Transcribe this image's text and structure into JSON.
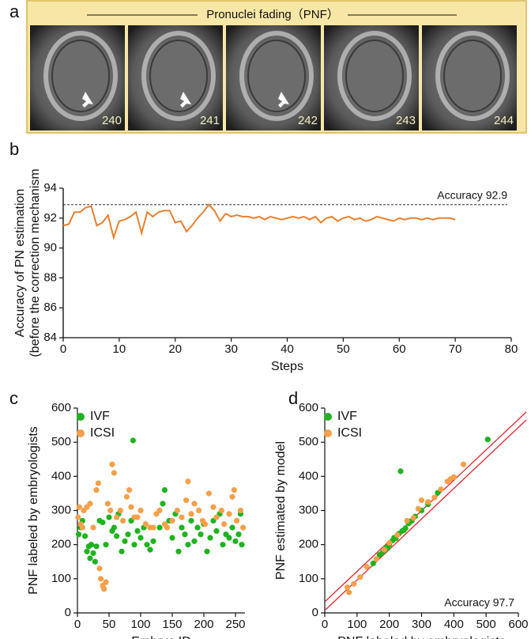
{
  "panel_labels": [
    "a",
    "b",
    "c",
    "d"
  ],
  "panel_a": {
    "title": "Pronuclei fading（PNF）",
    "frames": [
      "240",
      "241",
      "242",
      "243",
      "244"
    ]
  },
  "chart_data": [
    {
      "type": "line",
      "ylabel": [
        "Accuracy of PN estimation",
        "(before the correction mechanism"
      ],
      "xlabel": "Steps",
      "color": "#e8802f",
      "x": [
        0,
        1,
        2,
        3,
        4,
        5,
        6,
        7,
        8,
        9,
        10,
        11,
        12,
        13,
        14,
        15,
        16,
        17,
        18,
        19,
        20,
        21,
        22,
        23,
        24,
        25,
        26,
        27,
        28,
        29,
        30,
        31,
        32,
        33,
        34,
        35,
        36,
        37,
        38,
        39,
        40,
        41,
        42,
        43,
        44,
        45,
        46,
        47,
        48,
        49,
        50,
        51,
        52,
        53,
        54,
        55,
        56,
        57,
        58,
        59,
        60,
        61,
        62,
        63,
        64,
        65,
        66,
        67,
        68,
        69,
        70
      ],
      "values": [
        91.5,
        91.6,
        92.4,
        92.4,
        92.7,
        92.8,
        91.5,
        91.7,
        92.2,
        90.7,
        91.8,
        91.9,
        92.1,
        92.4,
        91.0,
        92.4,
        92.1,
        92.4,
        92.5,
        92.5,
        91.7,
        91.8,
        91.1,
        91.5,
        92.0,
        92.4,
        92.9,
        92.5,
        91.8,
        92.3,
        92.1,
        92.2,
        92.1,
        92.1,
        92.0,
        92.1,
        91.9,
        92.1,
        92.0,
        91.9,
        92.0,
        92.1,
        92.0,
        92.1,
        91.9,
        92.1,
        91.7,
        92.0,
        92.1,
        91.8,
        92.0,
        92.1,
        91.9,
        92.0,
        91.8,
        91.9,
        92.1,
        92.0,
        91.9,
        91.8,
        92.0,
        91.9,
        92.0,
        92.0,
        91.9,
        92.0,
        91.9,
        92.0,
        92.0,
        92.0,
        91.9
      ],
      "reference_line": 92.9,
      "annotation": "Accuracy 92.9",
      "xlim": [
        0,
        80
      ],
      "xticks": [
        0,
        10,
        20,
        30,
        40,
        50,
        60,
        70,
        80
      ],
      "ylim": [
        84,
        94
      ],
      "yticks": [
        84,
        86,
        88,
        90,
        92,
        94
      ]
    },
    {
      "type": "scatter",
      "xlabel": "Embryo ID",
      "ylabel": "PNF labeled by embryologists",
      "legend": "upper left",
      "xlim": [
        0,
        265
      ],
      "xticks": [
        0,
        50,
        100,
        150,
        200,
        250
      ],
      "ylim": [
        0,
        600
      ],
      "yticks": [
        0,
        100,
        200,
        300,
        400,
        500,
        600
      ],
      "series": [
        {
          "name": "IVF",
          "color": "#1fb31f",
          "x": [
            2,
            5,
            8,
            12,
            15,
            18,
            20,
            22,
            25,
            28,
            30,
            35,
            40,
            45,
            50,
            55,
            58,
            62,
            65,
            70,
            75,
            80,
            85,
            88,
            90,
            95,
            100,
            105,
            110,
            115,
            120,
            130,
            135,
            138,
            145,
            150,
            155,
            160,
            165,
            170,
            175,
            180,
            185,
            190,
            195,
            200,
            205,
            210,
            215,
            220,
            225,
            230,
            235,
            240,
            245,
            250,
            255,
            258,
            260
          ],
          "y": [
            230,
            250,
            270,
            225,
            180,
            195,
            160,
            200,
            175,
            150,
            195,
            270,
            265,
            200,
            280,
            240,
            250,
            225,
            290,
            180,
            210,
            230,
            270,
            505,
            200,
            240,
            220,
            250,
            200,
            185,
            210,
            250,
            320,
            360,
            270,
            220,
            290,
            180,
            250,
            230,
            200,
            270,
            210,
            250,
            230,
            260,
            180,
            220,
            270,
            240,
            290,
            200,
            230,
            220,
            250,
            210,
            230,
            290,
            200
          ]
        },
        {
          "name": "ICSI",
          "color": "#f5a04a",
          "x": [
            1,
            3,
            5,
            8,
            10,
            15,
            20,
            25,
            30,
            33,
            35,
            37,
            40,
            42,
            45,
            48,
            52,
            55,
            58,
            62,
            68,
            72,
            78,
            82,
            85,
            90,
            95,
            100,
            108,
            115,
            120,
            125,
            130,
            138,
            142,
            150,
            158,
            165,
            172,
            175,
            180,
            185,
            192,
            198,
            202,
            208,
            215,
            220,
            228,
            232,
            240,
            245,
            248,
            252,
            258,
            262
          ],
          "y": [
            280,
            310,
            260,
            250,
            300,
            310,
            320,
            250,
            360,
            380,
            130,
            100,
            80,
            70,
            90,
            320,
            300,
            435,
            410,
            280,
            300,
            270,
            340,
            360,
            310,
            280,
            280,
            300,
            260,
            250,
            250,
            290,
            300,
            260,
            250,
            270,
            300,
            280,
            330,
            385,
            290,
            320,
            300,
            270,
            260,
            350,
            310,
            280,
            300,
            260,
            290,
            340,
            360,
            270,
            300,
            250
          ]
        }
      ]
    },
    {
      "type": "scatter",
      "xlabel": "PNF labeled by embryologists",
      "ylabel": "PNF estimated by model",
      "legend": "upper left",
      "annotation": "Accuracy 97.7",
      "xlim": [
        0,
        600
      ],
      "xticks": [
        0,
        100,
        200,
        300,
        400,
        500,
        600
      ],
      "ylim": [
        0,
        600
      ],
      "yticks": [
        0,
        100,
        200,
        300,
        400,
        500,
        600
      ],
      "series": [
        {
          "name": "IVF",
          "color": "#1fb31f",
          "x": [
            150,
            170,
            180,
            190,
            200,
            210,
            220,
            230,
            235,
            240,
            250,
            260,
            270,
            280,
            300,
            320,
            350,
            505,
            195,
            215,
            245,
            265
          ],
          "y": [
            145,
            170,
            178,
            192,
            200,
            212,
            218,
            232,
            415,
            240,
            248,
            262,
            270,
            282,
            300,
            318,
            352,
            508,
            190,
            220,
            242,
            268
          ]
        },
        {
          "name": "ICSI",
          "color": "#f5a04a",
          "x": [
            70,
            90,
            110,
            130,
            160,
            200,
            225,
            255,
            290,
            300,
            320,
            340,
            360,
            380,
            390,
            400,
            430,
            75,
            185,
            275
          ],
          "y": [
            75,
            85,
            105,
            135,
            158,
            205,
            228,
            270,
            305,
            330,
            325,
            338,
            362,
            385,
            392,
            398,
            435,
            60,
            185,
            278
          ]
        }
      ]
    }
  ]
}
